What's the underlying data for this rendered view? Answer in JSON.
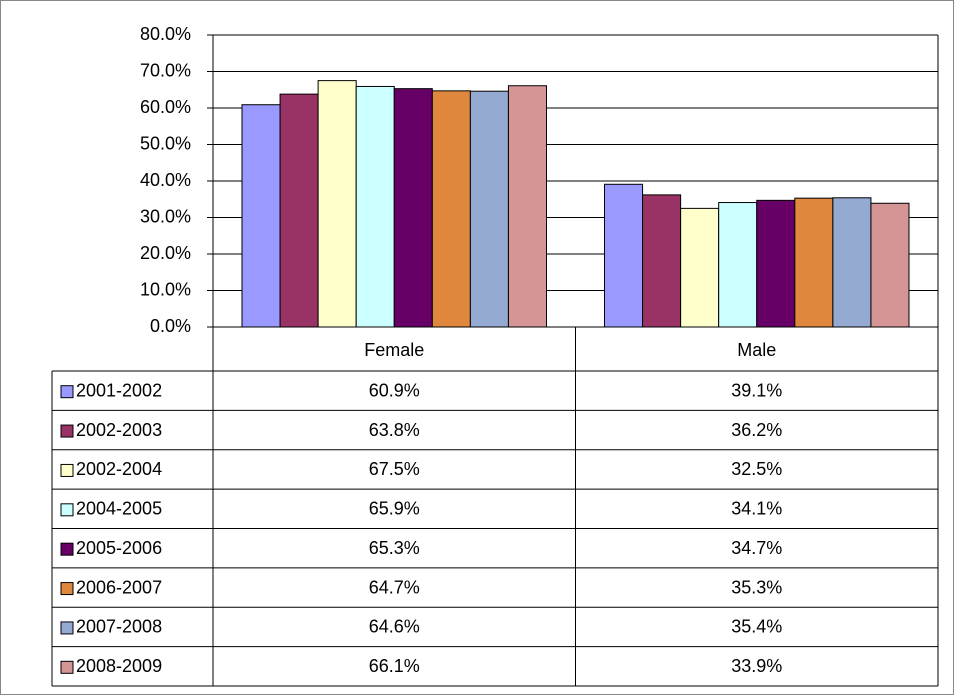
{
  "chart_data": {
    "type": "bar",
    "categories": [
      "Female",
      "Male"
    ],
    "series": [
      {
        "name": "2001-2002",
        "color": "#9999ff",
        "values": [
          60.9,
          39.1
        ],
        "value_labels": [
          "60.9%",
          "39.1%"
        ]
      },
      {
        "name": "2002-2003",
        "color": "#993366",
        "values": [
          63.8,
          36.2
        ],
        "value_labels": [
          "63.8%",
          "36.2%"
        ]
      },
      {
        "name": "2002-2004",
        "color": "#ffffcc",
        "values": [
          67.5,
          32.5
        ],
        "value_labels": [
          "67.5%",
          "32.5%"
        ]
      },
      {
        "name": "2004-2005",
        "color": "#ccffff",
        "values": [
          65.9,
          34.1
        ],
        "value_labels": [
          "65.9%",
          "34.1%"
        ]
      },
      {
        "name": "2005-2006",
        "color": "#660066",
        "values": [
          65.3,
          34.7
        ],
        "value_labels": [
          "65.3%",
          "34.7%"
        ]
      },
      {
        "name": "2006-2007",
        "color": "#df873d",
        "values": [
          64.7,
          35.3
        ],
        "value_labels": [
          "64.7%",
          "35.3%"
        ]
      },
      {
        "name": "2007-2008",
        "color": "#95aad2",
        "values": [
          64.6,
          35.4
        ],
        "value_labels": [
          "64.6%",
          "35.4%"
        ]
      },
      {
        "name": "2008-2009",
        "color": "#d59595",
        "values": [
          66.1,
          33.9
        ],
        "value_labels": [
          "66.1%",
          "33.9%"
        ]
      }
    ],
    "ylim": [
      0,
      80
    ],
    "yticks": [
      {
        "value": 0,
        "label": "0.0%"
      },
      {
        "value": 10,
        "label": "10.0%"
      },
      {
        "value": 20,
        "label": "20.0%"
      },
      {
        "value": 30,
        "label": "30.0%"
      },
      {
        "value": 40,
        "label": "40.0%"
      },
      {
        "value": 50,
        "label": "50.0%"
      },
      {
        "value": 60,
        "label": "60.0%"
      },
      {
        "value": 70,
        "label": "70.0%"
      },
      {
        "value": 80,
        "label": "80.0%"
      }
    ],
    "grid": true
  }
}
